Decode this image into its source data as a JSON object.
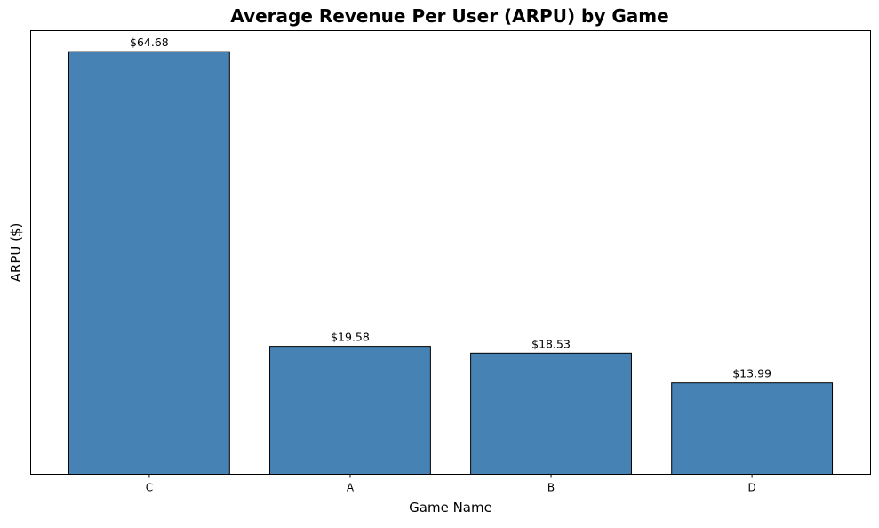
{
  "chart_data": {
    "type": "bar",
    "title": "Average Revenue Per User (ARPU) by Game",
    "xlabel": "Game Name",
    "ylabel": "ARPU ($)",
    "categories": [
      "C",
      "A",
      "B",
      "D"
    ],
    "values": [
      64.68,
      19.58,
      18.53,
      13.99
    ],
    "value_labels": [
      "$64.68",
      "$19.58",
      "$18.53",
      "$13.99"
    ],
    "ylim": [
      0,
      67.9
    ],
    "y_ticks_visible": false,
    "grid": false,
    "legend": "none",
    "bar_color": "#4682b4",
    "bar_edge_color": "#000000"
  }
}
